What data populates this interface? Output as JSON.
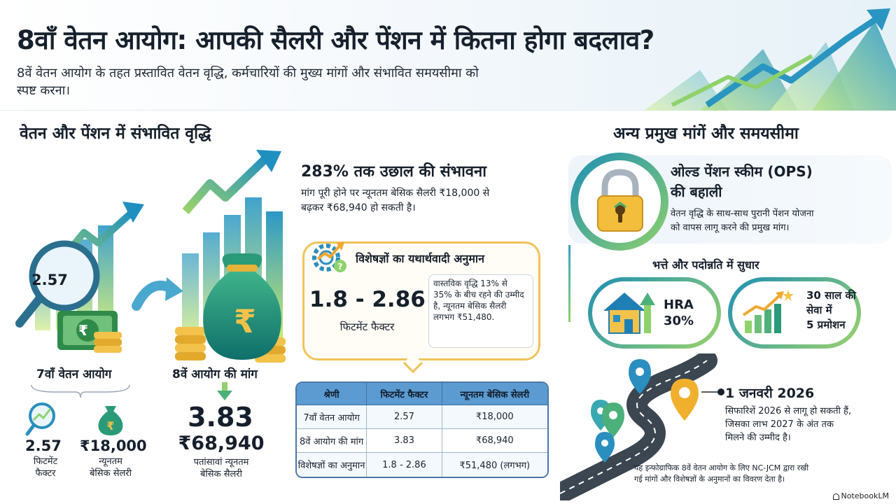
{
  "header": {
    "title": "8वाँ वेतन आयोग: आपकी सैलरी और पेंशन में कितना होगा बदलाव?",
    "subtitle": "8वें वेतन आयोग के तहत प्रस्तावित वेतन वृद्धि, कर्मचारियों की मुख्य मांगों और संभावित समयसीमा को स्पष्ट करना।"
  },
  "left": {
    "section_title": "वेतन और पेंशन में संभावित वृद्धि",
    "magnifier_value": "2.57",
    "seventh_label": "7वाँ वेतन आयोग",
    "seventh_factor_value": "2.57",
    "seventh_factor_label_1": "फिटमेंट",
    "seventh_factor_label_2": "फैक्टर",
    "seventh_salary_value": "₹18,000",
    "seventh_salary_label_1": "न्यूनतम",
    "seventh_salary_label_2": "बेसिक सेलरी",
    "eighth_label": "8वें आयोग की मांग",
    "eighth_factor_value": "3.83",
    "eighth_salary_value": "₹68,940",
    "eighth_salary_label_1": "पतांसावां न्यूनतम",
    "eighth_salary_label_2": "बेसिक सैलरी",
    "rupee_symbol": "₹"
  },
  "middle": {
    "jump_title": "283% तक उछाल की संभावना",
    "jump_text_1": "मांग पूरी होने पर न्यूनतम बेसिक सैलरी ₹18,000 से",
    "jump_text_2": "बढ़कर ₹68,940 हो सकती है।",
    "expert_title": "विशेषज्ञों का यथार्थवादी अनुमान",
    "expert_range": "1.8 - 2.86",
    "expert_range_label": "फिटमेंट फैक्टर",
    "expert_note": "वास्तविक वृद्धि 13% से 35% के बीच रहने की उम्मीद है, न्यूनतम बेसिक सैलरी लगभग ₹51,480.",
    "table": {
      "headers": [
        "श्रेणी",
        "फिटमेंट फैक्टर",
        "न्यूनतम बेसिक सेलरी"
      ],
      "rows": [
        [
          "7वाँ वेतन आयोग",
          "2.57",
          "₹18,000"
        ],
        [
          "8वें आयोग की मांग",
          "3.83",
          "₹68,940"
        ],
        [
          "विशेषज्ञों का अनुमान",
          "1.8 - 2.86",
          "₹51,480 (लगभग)"
        ]
      ]
    }
  },
  "right": {
    "section_title": "अन्य प्रमुख मांगें और समयसीमा",
    "ops_title_1": "ओल्ड पेंशन स्कीम (OPS)",
    "ops_title_2": "की बहाली",
    "ops_text_1": "वेतन वृद्धि के साथ-साथ पुरानी पेंशन योजना",
    "ops_text_2": "को वापस लागू करने की प्रमुख मांग।",
    "allowance_title": "भत्ते और पदोन्नति में सुधार",
    "hra_1": "HRA",
    "hra_2": "30%",
    "promo_1": "30 साल की",
    "promo_2": "सेवा में",
    "promo_3": "5 प्रमोशन",
    "timeline_date": "1 जनवरी 2026",
    "timeline_text_1": "सिफारिशें 2026 से लागू हो सकती हैं,",
    "timeline_text_2": "जिसका लाभ 2027 के अंत तक",
    "timeline_text_3": "मिलने की उम्मीद है।",
    "footnote_1": "यह इन्फोग्राफिक 8वें वेतन आयोग के लिए NC-JCM द्वारा रखी",
    "footnote_2": "गई मांगों और विशेषज्ञों के अनुमानों का विवरण देता है।"
  },
  "brand": "NotebookLM",
  "colors": {
    "teal": "#1e8fb4",
    "green": "#8fd16b",
    "gold": "#f0c35a",
    "table_header": "#5b9bd2"
  },
  "icons": [
    "magnifier-icon",
    "banknote-icon",
    "coin-stack-icon",
    "money-bag-icon",
    "growth-chart-icon",
    "curved-arrow-icon",
    "gear-chart-icon",
    "padlock-icon",
    "house-icon",
    "promotion-chart-icon",
    "map-pin-icon",
    "road-icon"
  ]
}
